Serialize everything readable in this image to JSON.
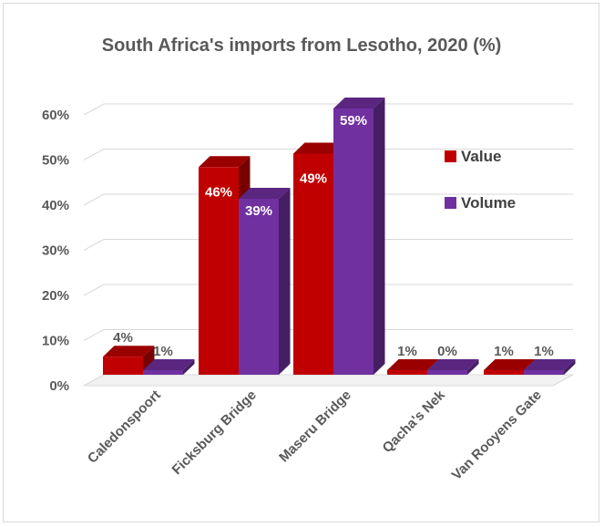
{
  "chart_data": {
    "type": "bar",
    "title": "South Africa's imports from Lesotho, 2020 (%)",
    "categories": [
      "Caledonspoort",
      "Ficksburg Bridge",
      "Maseru Bridge",
      "Qacha's Nek",
      "Van Rooyens Gate"
    ],
    "series": [
      {
        "name": "Value",
        "values": [
          4,
          46,
          49,
          1,
          1
        ],
        "labels": [
          "4%",
          "46%",
          "49%",
          "1%",
          "1%"
        ],
        "color": "#c00000"
      },
      {
        "name": "Volume",
        "values": [
          1,
          39,
          59,
          0,
          1
        ],
        "labels": [
          "1%",
          "39%",
          "59%",
          "0%",
          "1%"
        ],
        "color": "#7030a0"
      }
    ],
    "ylim": [
      0,
      60
    ],
    "yticks": [
      "0%",
      "10%",
      "20%",
      "30%",
      "40%",
      "50%",
      "60%"
    ],
    "grid": true,
    "legend": "right",
    "style": "3d-clustered-column"
  }
}
